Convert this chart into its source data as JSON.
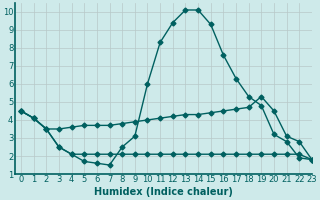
{
  "xlabel": "Humidex (Indice chaleur)",
  "ylabel": "",
  "xlim": [
    -0.5,
    23
  ],
  "ylim": [
    1,
    10.5
  ],
  "xticks": [
    0,
    1,
    2,
    3,
    4,
    5,
    6,
    7,
    8,
    9,
    10,
    11,
    12,
    13,
    14,
    15,
    16,
    17,
    18,
    19,
    20,
    21,
    22,
    23
  ],
  "yticks": [
    1,
    2,
    3,
    4,
    5,
    6,
    7,
    8,
    9,
    10
  ],
  "bg_color": "#ceeaea",
  "grid_color": "#b8c8c8",
  "line_color": "#006060",
  "line1_x": [
    0,
    1,
    2,
    3,
    4,
    5,
    6,
    7,
    8,
    9,
    10,
    11,
    12,
    13,
    14,
    15,
    16,
    17,
    18,
    19,
    20,
    21,
    22,
    23
  ],
  "line1_y": [
    4.5,
    4.1,
    3.5,
    3.5,
    3.6,
    3.7,
    3.7,
    3.7,
    3.8,
    3.9,
    4.0,
    4.1,
    4.2,
    4.3,
    4.3,
    4.4,
    4.5,
    4.6,
    4.7,
    5.3,
    4.5,
    3.1,
    2.8,
    1.8
  ],
  "line2_x": [
    0,
    1,
    2,
    3,
    4,
    5,
    6,
    7,
    8,
    9,
    10,
    11,
    12,
    13,
    14,
    15,
    16,
    17,
    18,
    19,
    20,
    21,
    22,
    23
  ],
  "line2_y": [
    4.5,
    4.1,
    3.5,
    2.5,
    2.1,
    2.1,
    2.1,
    2.1,
    2.1,
    2.1,
    2.1,
    2.1,
    2.1,
    2.1,
    2.1,
    2.1,
    2.1,
    2.1,
    2.1,
    2.1,
    2.1,
    2.1,
    2.1,
    1.8
  ],
  "line3_x": [
    0,
    1,
    2,
    3,
    4,
    5,
    6,
    7,
    8,
    9,
    10,
    11,
    12,
    13,
    14,
    15,
    16,
    17,
    18,
    19,
    20,
    21,
    22,
    23
  ],
  "line3_y": [
    4.5,
    4.1,
    3.5,
    2.5,
    2.1,
    1.7,
    1.6,
    1.5,
    2.5,
    3.1,
    6.0,
    8.3,
    9.4,
    10.1,
    10.1,
    9.3,
    7.6,
    6.3,
    5.3,
    4.8,
    3.2,
    2.8,
    1.9,
    1.8
  ],
  "marker": "D",
  "markersize": 2.5,
  "linewidth": 1.0,
  "fontsize_label": 7,
  "fontsize_tick": 6
}
